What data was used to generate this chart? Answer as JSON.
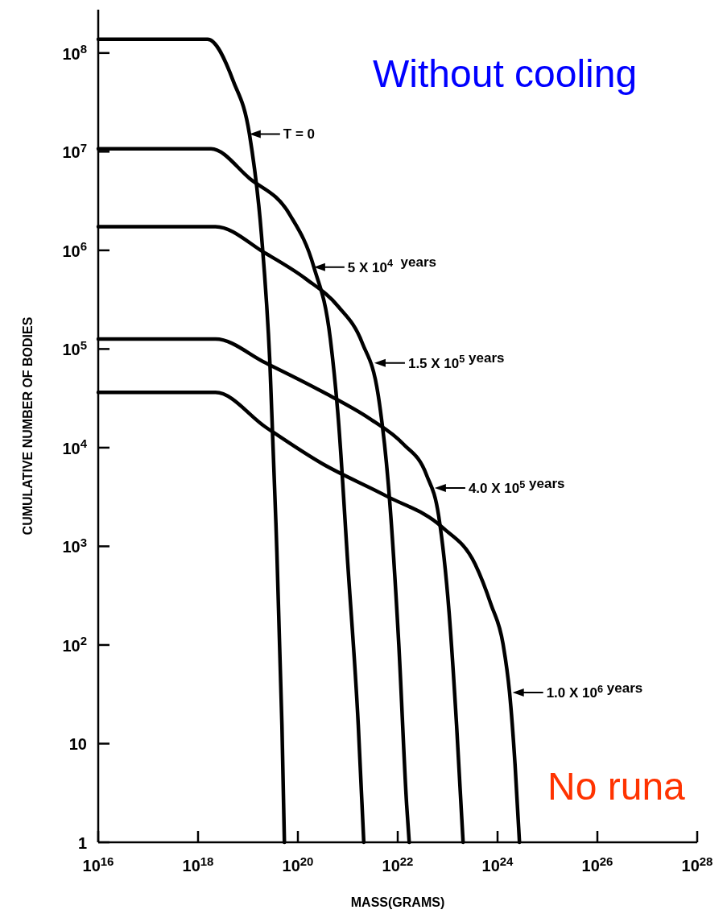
{
  "chart_data": {
    "type": "line",
    "xlabel": "MASS(GRAMS)",
    "ylabel": "CUMULATIVE NUMBER OF BODIES",
    "log": "xy",
    "xlim": [
      1e+16,
      1e+28
    ],
    "ylim": [
      1,
      275000000.0
    ],
    "xticks": [
      {
        "value": 1e+16,
        "label": "10$^{16}$"
      },
      {
        "value": 1e+18,
        "label": "10$^{18}$"
      },
      {
        "value": 1e+20,
        "label": "10$^{20}$"
      },
      {
        "value": 1e+22,
        "label": "10$^{22}$"
      },
      {
        "value": 1e+24,
        "label": "10$^{24}$"
      },
      {
        "value": 1e+26,
        "label": "10$^{26}$"
      },
      {
        "value": 1e+28,
        "label": "10$^{28}$"
      }
    ],
    "yticks": [
      1,
      10,
      {
        "value": 100,
        "label": "10$^{2}$"
      },
      {
        "value": 1000,
        "label": "10$^{3}$"
      },
      {
        "value": 10000,
        "label": "10$^{4}$"
      },
      {
        "value": 100000,
        "label": "10$^{5}$"
      },
      {
        "value": 1000000,
        "label": "10$^{6}$"
      },
      {
        "value": 10000000,
        "label": "10$^{7}$"
      },
      {
        "value": 100000000,
        "label": "10$^{8}$"
      }
    ],
    "series": [
      {
        "color": "#000000",
        "x": [
          1e+16,
          1.55e+18,
          5.13e+18,
          1.07e+19,
          1.86e+19,
          2.75e+19,
          3.63e+19,
          4.79e+19,
          5.37e+19
        ],
        "values": [
          138000000.0,
          138000000.0,
          51300000.0,
          15100000.0,
          1450000.0,
          72400.0,
          1700.0,
          15.5,
          1
        ]
      },
      {
        "color": "#000000",
        "x": [
          1e+16,
          1.82e+18,
          1.07e+19,
          6.92e+19,
          2.09e+20,
          4.47e+20,
          6.46e+20,
          1e+21,
          1.62e+21,
          2.09e+21
        ],
        "values": [
          10700000.0,
          10700000.0,
          5370000.0,
          2290000.0,
          676000.0,
          126000.0,
          19500.0,
          661,
          15.5,
          1
        ]
      },
      {
        "color": "#000000",
        "x": [
          1e+16,
          2.24e+18,
          2.24e+19,
          1.45e+20,
          6.46e+20,
          1.95e+21,
          4.07e+21,
          6.46e+21,
          1.05e+22,
          1.51e+22,
          1.7e+22
        ],
        "values": [
          1740000.0,
          1740000.0,
          933000.0,
          513000.0,
          269000.0,
          115000.0,
          33900.0,
          4370.0,
          102,
          2.4,
          1
        ]
      },
      {
        "color": "#000000",
        "x": [
          1e+16,
          2.24e+18,
          2.24e+19,
          3.02e+20,
          2.82e+21,
          1.26e+22,
          3.8e+22,
          6.61e+22,
          1.07e+23,
          1.51e+23,
          2.04e+23
        ],
        "values": [
          126000.0,
          126000.0,
          72400.0,
          37200.0,
          19500.0,
          11000.0,
          5250.0,
          2040.0,
          214,
          15.5,
          1
        ]
      },
      {
        "color": "#000000",
        "x": [
          1e+16,
          2.24e+18,
          2.24e+19,
          3.02e+20,
          5.89e+21,
          7.94e+22,
          3.55e+23,
          7.41e+23,
          1.29e+24,
          1.74e+24,
          2.24e+24,
          2.75e+24
        ],
        "values": [
          36300.0,
          36300.0,
          16200.0,
          6920.0,
          3240.0,
          1550.0,
          661,
          257,
          102,
          33.1,
          6.17,
          1
        ]
      }
    ],
    "annotations": [
      {
        "text": "T = 0",
        "x": 1.07e+19,
        "y": 15100000.0
      },
      {
        "text": "5 X 10$^{4}$  years",
        "x": 2.09e+20,
        "y": 676000.0
      },
      {
        "text": "1.5 X 10$^{5}$ years",
        "x": 3.4e+21,
        "y": 72000.0
      },
      {
        "text": "4.0 X 10$^{5}$ years",
        "x": 5.5e+22,
        "y": 3900.0
      },
      {
        "text": "1.0 X 10$^{6}$ years",
        "x": 2e+24,
        "y": 33
      },
      "Without cooling",
      "No runa"
    ]
  }
}
